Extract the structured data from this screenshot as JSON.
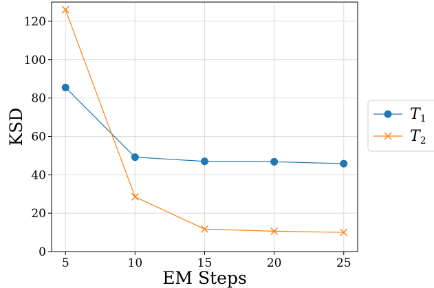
{
  "chart_data": {
    "type": "line",
    "title": "",
    "xlabel": "EM Steps",
    "ylabel": "KSD",
    "x": [
      5,
      10,
      15,
      20,
      25
    ],
    "xticks": [
      5,
      10,
      15,
      20,
      25
    ],
    "yticks": [
      0,
      20,
      40,
      60,
      80,
      100,
      120
    ],
    "xlim": [
      4,
      26
    ],
    "ylim": [
      0,
      130
    ],
    "grid": true,
    "legend_position": "outside-right",
    "series": [
      {
        "name": "T",
        "subscript": "1",
        "values": [
          85.5,
          49.2,
          47.0,
          46.8,
          45.8
        ],
        "color": "#1f77b4",
        "marker": "circle"
      },
      {
        "name": "T",
        "subscript": "2",
        "values": [
          126.0,
          28.5,
          11.7,
          10.6,
          10.0
        ],
        "color": "#ff7f0e",
        "marker": "x"
      }
    ]
  }
}
